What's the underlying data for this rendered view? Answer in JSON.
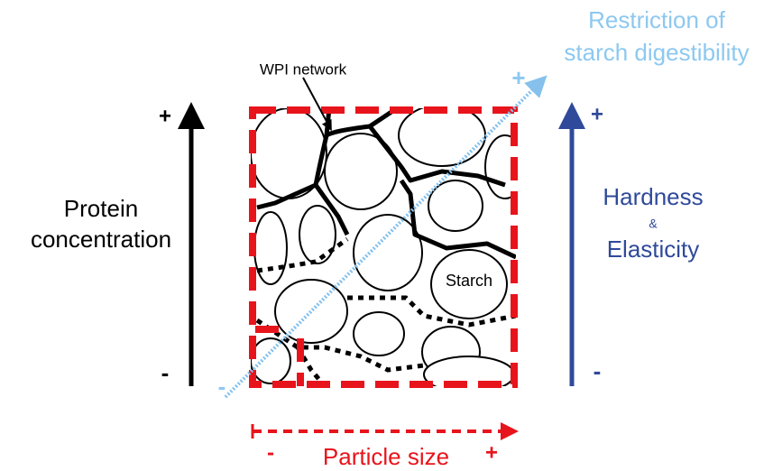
{
  "labels": {
    "digestibility": [
      "Restriction of",
      "starch digestibility"
    ],
    "digestibility_plus": "+",
    "digestibility_minus": "-",
    "wpi": "WPI network",
    "starch": "Starch",
    "protein": [
      "Protein",
      "concentration"
    ],
    "protein_plus": "+",
    "protein_minus": "-",
    "hardness": [
      "Hardness",
      "&",
      "Elasticity"
    ],
    "hardness_plus": "+",
    "hardness_minus": "-",
    "size": "Particle size",
    "size_minus": "-",
    "size_plus": "+"
  }
}
